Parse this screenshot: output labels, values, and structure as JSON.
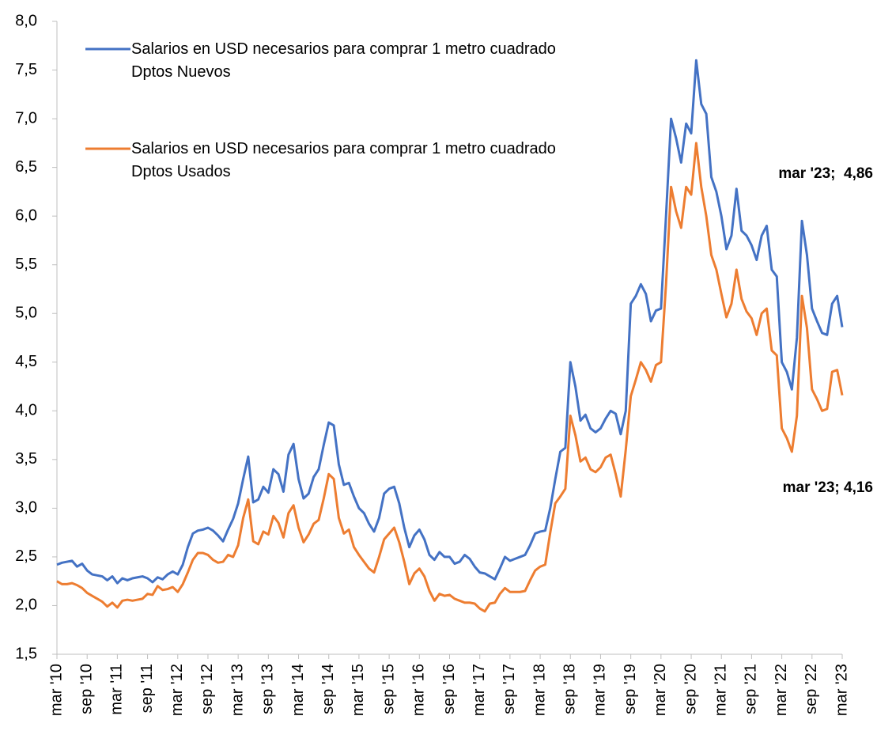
{
  "chart_data": {
    "type": "line",
    "categories": [
      "mar '10",
      null,
      null,
      null,
      null,
      null,
      "sep '10",
      null,
      null,
      null,
      null,
      null,
      "mar '11",
      null,
      null,
      null,
      null,
      null,
      "sep '11",
      null,
      null,
      null,
      null,
      null,
      "mar '12",
      null,
      null,
      null,
      null,
      null,
      "sep '12",
      null,
      null,
      null,
      null,
      null,
      "mar '13",
      null,
      null,
      null,
      null,
      null,
      "sep '13",
      null,
      null,
      null,
      null,
      null,
      "mar '14",
      null,
      null,
      null,
      null,
      null,
      "sep '14",
      null,
      null,
      null,
      null,
      null,
      "mar '15",
      null,
      null,
      null,
      null,
      null,
      "sep '15",
      null,
      null,
      null,
      null,
      null,
      "mar '16",
      null,
      null,
      null,
      null,
      null,
      "sep '16",
      null,
      null,
      null,
      null,
      null,
      "mar '17",
      null,
      null,
      null,
      null,
      null,
      "sep '17",
      null,
      null,
      null,
      null,
      null,
      "mar '18",
      null,
      null,
      null,
      null,
      null,
      "sep '18",
      null,
      null,
      null,
      null,
      null,
      "mar '19",
      null,
      null,
      null,
      null,
      null,
      "sep '19",
      null,
      null,
      null,
      null,
      null,
      "mar '20",
      null,
      null,
      null,
      null,
      null,
      "sep '20",
      null,
      null,
      null,
      null,
      null,
      "mar '21",
      null,
      null,
      null,
      null,
      null,
      "sep '21",
      null,
      null,
      null,
      null,
      null,
      "mar '22",
      null,
      null,
      null,
      null,
      null,
      "sep '22",
      null,
      null,
      null,
      null,
      null,
      "mar '23"
    ],
    "series": [
      {
        "name": "Salarios en USD necesarios para comprar 1 metro cuadrado\nDptos Nuevos",
        "color": "#4472c4",
        "values": [
          2.42,
          2.44,
          2.45,
          2.46,
          2.4,
          2.43,
          2.36,
          2.32,
          2.31,
          2.3,
          2.26,
          2.3,
          2.23,
          2.28,
          2.26,
          2.28,
          2.29,
          2.3,
          2.28,
          2.24,
          2.29,
          2.27,
          2.32,
          2.35,
          2.32,
          2.42,
          2.6,
          2.74,
          2.77,
          2.78,
          2.8,
          2.77,
          2.72,
          2.66,
          2.78,
          2.89,
          3.05,
          3.3,
          3.53,
          3.06,
          3.09,
          3.22,
          3.16,
          3.4,
          3.35,
          3.17,
          3.55,
          3.66,
          3.3,
          3.1,
          3.15,
          3.32,
          3.4,
          3.65,
          3.88,
          3.85,
          3.45,
          3.24,
          3.26,
          3.12,
          3.0,
          2.95,
          2.84,
          2.76,
          2.9,
          3.15,
          3.2,
          3.22,
          3.05,
          2.8,
          2.6,
          2.72,
          2.78,
          2.68,
          2.52,
          2.47,
          2.55,
          2.5,
          2.5,
          2.43,
          2.45,
          2.52,
          2.48,
          2.4,
          2.34,
          2.33,
          2.3,
          2.27,
          2.38,
          2.5,
          2.46,
          2.48,
          2.5,
          2.52,
          2.62,
          2.74,
          2.76,
          2.77,
          3.0,
          3.3,
          3.58,
          3.62,
          4.5,
          4.25,
          3.9,
          3.96,
          3.82,
          3.78,
          3.82,
          3.92,
          4.0,
          3.97,
          3.76,
          4.0,
          5.1,
          5.18,
          5.3,
          5.2,
          4.92,
          5.03,
          5.05,
          6.0,
          7.0,
          6.8,
          6.55,
          6.95,
          6.85,
          7.6,
          7.15,
          7.05,
          6.4,
          6.25,
          6.0,
          5.66,
          5.8,
          6.28,
          5.85,
          5.8,
          5.7,
          5.55,
          5.8,
          5.9,
          5.45,
          5.38,
          4.5,
          4.4,
          4.22,
          4.75,
          5.95,
          5.6,
          5.05,
          4.92,
          4.8,
          4.78,
          5.1,
          5.18,
          4.86
        ]
      },
      {
        "name": "Salarios en USD necesarios para comprar 1 metro cuadrado\nDptos Usados",
        "color": "#ed7d31",
        "values": [
          2.25,
          2.22,
          2.22,
          2.23,
          2.21,
          2.18,
          2.13,
          2.1,
          2.07,
          2.04,
          1.99,
          2.03,
          1.98,
          2.05,
          2.06,
          2.05,
          2.06,
          2.07,
          2.12,
          2.11,
          2.2,
          2.16,
          2.17,
          2.19,
          2.14,
          2.22,
          2.34,
          2.47,
          2.54,
          2.54,
          2.52,
          2.47,
          2.44,
          2.45,
          2.52,
          2.5,
          2.62,
          2.9,
          3.09,
          2.66,
          2.63,
          2.76,
          2.73,
          2.92,
          2.85,
          2.7,
          2.95,
          3.03,
          2.8,
          2.65,
          2.73,
          2.84,
          2.88,
          3.1,
          3.35,
          3.3,
          2.9,
          2.74,
          2.78,
          2.6,
          2.52,
          2.45,
          2.38,
          2.34,
          2.5,
          2.68,
          2.74,
          2.8,
          2.65,
          2.45,
          2.22,
          2.33,
          2.38,
          2.3,
          2.15,
          2.05,
          2.12,
          2.1,
          2.11,
          2.07,
          2.05,
          2.03,
          2.03,
          2.02,
          1.97,
          1.94,
          2.02,
          2.03,
          2.12,
          2.18,
          2.14,
          2.14,
          2.14,
          2.15,
          2.26,
          2.36,
          2.4,
          2.42,
          2.75,
          3.05,
          3.12,
          3.2,
          3.95,
          3.75,
          3.48,
          3.52,
          3.4,
          3.37,
          3.42,
          3.52,
          3.55,
          3.35,
          3.12,
          3.6,
          4.15,
          4.32,
          4.5,
          4.42,
          4.3,
          4.47,
          4.5,
          5.3,
          6.3,
          6.05,
          5.88,
          6.3,
          6.22,
          6.75,
          6.3,
          6.0,
          5.6,
          5.45,
          5.2,
          4.96,
          5.1,
          5.45,
          5.15,
          5.02,
          4.95,
          4.78,
          5.0,
          5.05,
          4.62,
          4.57,
          3.82,
          3.72,
          3.58,
          3.95,
          5.18,
          4.85,
          4.22,
          4.12,
          4.0,
          4.02,
          4.4,
          4.42,
          4.16
        ]
      }
    ],
    "annotations": [
      "mar '23;  4,86",
      "mar '23; 4,16"
    ],
    "ylim": [
      1.5,
      8
    ],
    "yticks": [
      {
        "value": 1.5,
        "label": "1,5"
      },
      {
        "value": 2,
        "label": "2,0"
      },
      {
        "value": 2.5,
        "label": "2,5"
      },
      {
        "value": 3,
        "label": "3,0"
      },
      {
        "value": 3.5,
        "label": "3,5"
      },
      {
        "value": 4,
        "label": "4,0"
      },
      {
        "value": 4.5,
        "label": "4,5"
      },
      {
        "value": 5,
        "label": "5,0"
      },
      {
        "value": 5.5,
        "label": "5,5"
      },
      {
        "value": 6,
        "label": "6,0"
      },
      {
        "value": 6.5,
        "label": "6,5"
      },
      {
        "value": 7,
        "label": "7,0"
      },
      {
        "value": 7.5,
        "label": "7,5"
      },
      {
        "value": 8,
        "label": "8,0"
      }
    ],
    "grid": false
  }
}
